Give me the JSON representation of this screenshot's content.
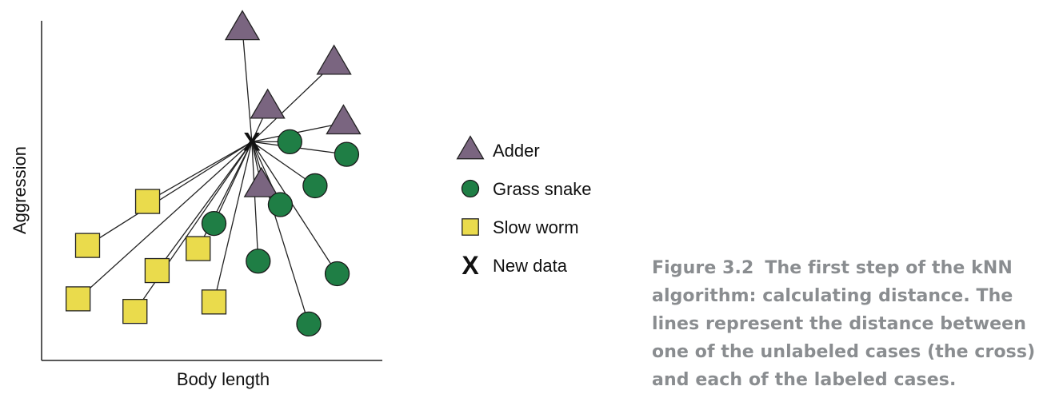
{
  "chart_data": {
    "type": "scatter",
    "title": "",
    "xlabel": "Body length",
    "ylabel": "Aggression",
    "xlim": [
      0,
      100
    ],
    "ylim": [
      0,
      100
    ],
    "grid": false,
    "legend_position": "right",
    "new_data": {
      "name": "New data",
      "marker": "X",
      "x": 62,
      "y": 63
    },
    "series": [
      {
        "name": "Adder",
        "marker": "triangle",
        "color": "#7a6580",
        "points": [
          {
            "x": 59,
            "y": 99
          },
          {
            "x": 88,
            "y": 88
          },
          {
            "x": 67,
            "y": 74
          },
          {
            "x": 91,
            "y": 69
          },
          {
            "x": 65,
            "y": 49
          }
        ]
      },
      {
        "name": "Grass snake",
        "marker": "circle",
        "color": "#1f7e45",
        "points": [
          {
            "x": 74,
            "y": 63
          },
          {
            "x": 92,
            "y": 59
          },
          {
            "x": 82,
            "y": 49
          },
          {
            "x": 71,
            "y": 43
          },
          {
            "x": 50,
            "y": 37
          },
          {
            "x": 64,
            "y": 25
          },
          {
            "x": 89,
            "y": 21
          },
          {
            "x": 80,
            "y": 5
          }
        ]
      },
      {
        "name": "Slow worm",
        "marker": "square",
        "color": "#eadb4c",
        "points": [
          {
            "x": 29,
            "y": 44
          },
          {
            "x": 10,
            "y": 30
          },
          {
            "x": 45,
            "y": 29
          },
          {
            "x": 32,
            "y": 22
          },
          {
            "x": 7,
            "y": 13
          },
          {
            "x": 25,
            "y": 9
          },
          {
            "x": 50,
            "y": 12
          }
        ]
      }
    ]
  },
  "caption": {
    "figure_label": "Figure 3.2",
    "text": "The first step of the kNN algorithm: calculating distance. The lines represent the distance between one of the unlabeled cases (the cross) and each of the labeled cases."
  }
}
